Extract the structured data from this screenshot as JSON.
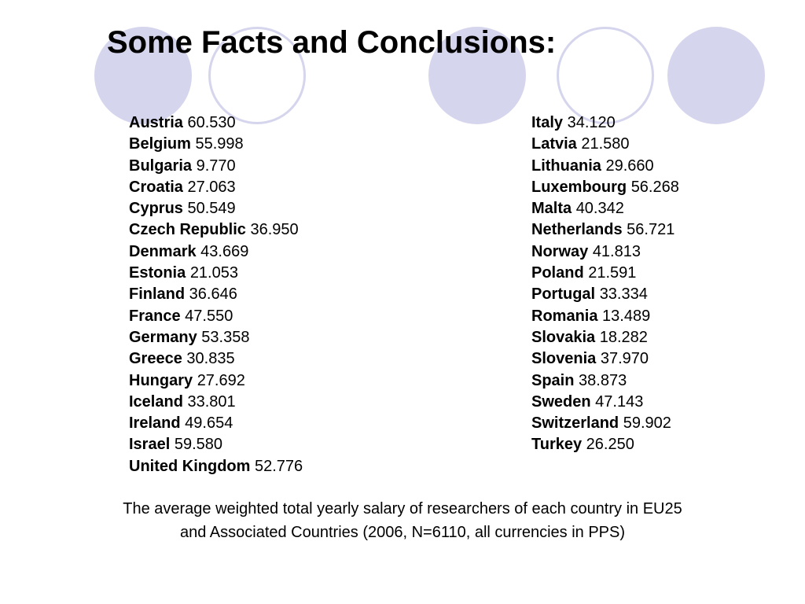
{
  "slide": {
    "title": "Some Facts and Conclusions:",
    "caption_line1": "The average weighted total yearly salary of researchers of each country in EU25",
    "caption_line2": "and Associated Countries (2006, N=6110, all currencies in PPS)"
  },
  "colors": {
    "decor": "#d5d5ed",
    "text": "#000000",
    "background": "#ffffff"
  },
  "left_column": [
    {
      "name": "Austria",
      "value": "60.530"
    },
    {
      "name": "Belgium",
      "value": "55.998"
    },
    {
      "name": "Bulgaria",
      "value": "9.770"
    },
    {
      "name": "Croatia",
      "value": "27.063"
    },
    {
      "name": "Cyprus",
      "value": "50.549"
    },
    {
      "name": "Czech Republic",
      "value": "36.950"
    },
    {
      "name": "Denmark",
      "value": "43.669"
    },
    {
      "name": "Estonia",
      "value": "21.053"
    },
    {
      "name": "Finland",
      "value": "36.646"
    },
    {
      "name": "France",
      "value": "47.550"
    },
    {
      "name": "Germany",
      "value": "53.358"
    },
    {
      "name": "Greece",
      "value": "30.835"
    },
    {
      "name": "Hungary",
      "value": "27.692"
    },
    {
      "name": "Iceland",
      "value": "33.801"
    },
    {
      "name": "Ireland",
      "value": "49.654"
    },
    {
      "name": "Israel",
      "value": "59.580"
    },
    {
      "name": "United Kingdom",
      "value": "52.776"
    }
  ],
  "right_column": [
    {
      "name": "Italy",
      "value": "34.120"
    },
    {
      "name": "Latvia",
      "value": "21.580"
    },
    {
      "name": "Lithuania",
      "value": "29.660"
    },
    {
      "name": "Luxembourg",
      "value": "56.268"
    },
    {
      "name": "Malta",
      "value": "40.342"
    },
    {
      "name": "Netherlands",
      "value": "56.721"
    },
    {
      "name": "Norway",
      "value": "41.813"
    },
    {
      "name": "Poland",
      "value": "21.591"
    },
    {
      "name": "Portugal",
      "value": "33.334"
    },
    {
      "name": "Romania",
      "value": "13.489"
    },
    {
      "name": "Slovakia",
      "value": "18.282"
    },
    {
      "name": "Slovenia",
      "value": "37.970"
    },
    {
      "name": "Spain",
      "value": "38.873"
    },
    {
      "name": "Sweden",
      "value": "47.143"
    },
    {
      "name": "Switzerland",
      "value": "59.902"
    },
    {
      "name": "Turkey",
      "value": "26.250"
    }
  ]
}
